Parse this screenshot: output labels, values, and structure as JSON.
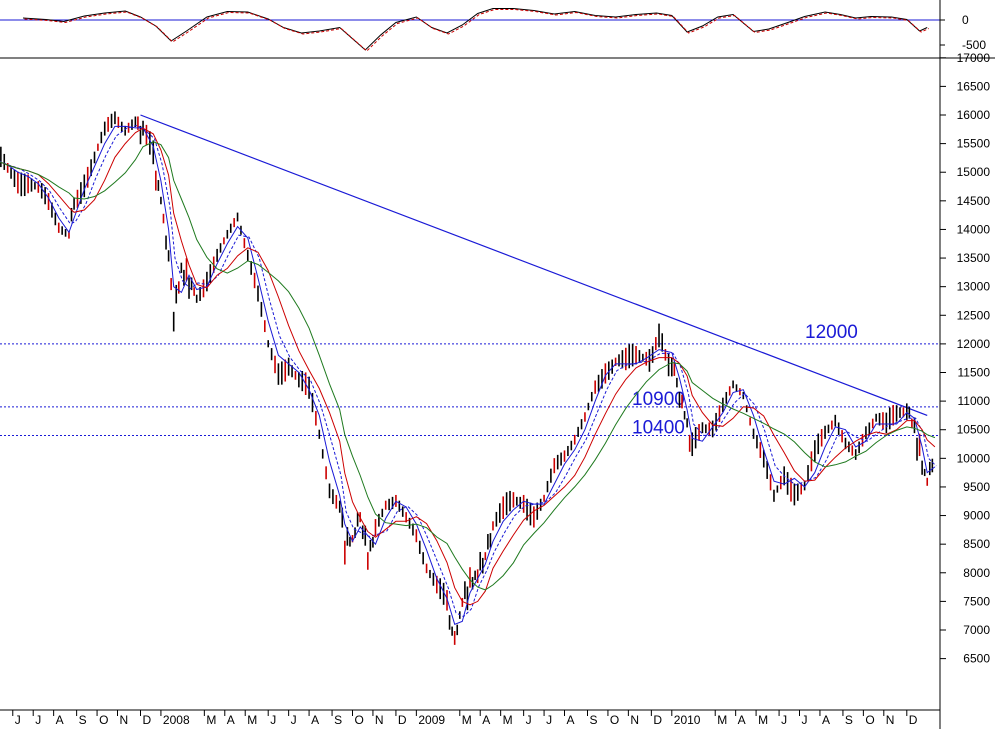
{
  "chart_data": [
    {
      "panel": "oscillator",
      "type": "line",
      "y_ticks": [
        0,
        -500
      ],
      "zero_line": true,
      "series": [
        {
          "style": "solid",
          "color": "#000000"
        },
        {
          "style": "dashed",
          "color": "#cc0000"
        }
      ],
      "values": [
        [
          2007.46,
          40
        ],
        [
          2007.55,
          10
        ],
        [
          2007.62,
          -30
        ],
        [
          2007.7,
          80
        ],
        [
          2007.78,
          140
        ],
        [
          2007.86,
          180
        ],
        [
          2007.92,
          60
        ],
        [
          2007.98,
          -120
        ],
        [
          2008.04,
          -420
        ],
        [
          2008.1,
          -220
        ],
        [
          2008.18,
          60
        ],
        [
          2008.26,
          170
        ],
        [
          2008.34,
          160
        ],
        [
          2008.42,
          20
        ],
        [
          2008.48,
          -150
        ],
        [
          2008.55,
          -260
        ],
        [
          2008.62,
          -220
        ],
        [
          2008.7,
          -150
        ],
        [
          2008.76,
          -420
        ],
        [
          2008.8,
          -600
        ],
        [
          2008.86,
          -300
        ],
        [
          2008.92,
          -50
        ],
        [
          2009.0,
          60
        ],
        [
          2009.06,
          -150
        ],
        [
          2009.12,
          -260
        ],
        [
          2009.18,
          -100
        ],
        [
          2009.24,
          130
        ],
        [
          2009.3,
          230
        ],
        [
          2009.38,
          230
        ],
        [
          2009.46,
          190
        ],
        [
          2009.54,
          120
        ],
        [
          2009.62,
          170
        ],
        [
          2009.7,
          90
        ],
        [
          2009.78,
          60
        ],
        [
          2009.86,
          110
        ],
        [
          2009.94,
          140
        ],
        [
          2010.0,
          90
        ],
        [
          2010.06,
          -240
        ],
        [
          2010.12,
          -120
        ],
        [
          2010.18,
          60
        ],
        [
          2010.24,
          110
        ],
        [
          2010.32,
          -230
        ],
        [
          2010.38,
          -180
        ],
        [
          2010.46,
          -40
        ],
        [
          2010.52,
          70
        ],
        [
          2010.6,
          160
        ],
        [
          2010.66,
          110
        ],
        [
          2010.72,
          40
        ],
        [
          2010.78,
          70
        ],
        [
          2010.86,
          60
        ],
        [
          2010.92,
          10
        ],
        [
          2010.97,
          -220
        ],
        [
          2011.0,
          -150
        ]
      ]
    },
    {
      "panel": "price",
      "type": "line",
      "y_ticks": [
        17000,
        16500,
        16000,
        15500,
        15000,
        14500,
        14000,
        13500,
        13000,
        12500,
        12000,
        11500,
        11000,
        10500,
        10000,
        9500,
        9000,
        8500,
        8000,
        7500,
        7000,
        6500
      ],
      "x_tick_labels": [
        "J",
        "J",
        "A",
        "S",
        "O",
        "N",
        "D",
        "2008",
        "M",
        "A",
        "M",
        "J",
        "J",
        "A",
        "S",
        "O",
        "N",
        "D",
        "2009",
        "M",
        "A",
        "M",
        "J",
        "J",
        "A",
        "S",
        "O",
        "N",
        "D",
        "2010",
        "M",
        "A",
        "M",
        "J",
        "J",
        "A",
        "S",
        "O",
        "N",
        "D"
      ],
      "x_tick_dates": [
        2007.42,
        2007.5,
        2007.58,
        2007.67,
        2007.75,
        2007.83,
        2007.92,
        2008.0,
        2008.17,
        2008.25,
        2008.33,
        2008.42,
        2008.5,
        2008.58,
        2008.67,
        2008.75,
        2008.83,
        2008.92,
        2009.0,
        2009.17,
        2009.25,
        2009.33,
        2009.42,
        2009.5,
        2009.58,
        2009.67,
        2009.75,
        2009.83,
        2009.92,
        2010.0,
        2010.17,
        2010.25,
        2010.33,
        2010.42,
        2010.5,
        2010.58,
        2010.67,
        2010.75,
        2010.83,
        2010.92
      ],
      "horizontal_levels": [
        {
          "value": 12000,
          "label": "12000"
        },
        {
          "value": 10900,
          "label": "10900"
        },
        {
          "value": 10400,
          "label": "10400"
        }
      ],
      "trendline": {
        "from": [
          2007.92,
          16000
        ],
        "to": [
          2011.0,
          10750
        ]
      },
      "close": [
        [
          2007.36,
          15200
        ],
        [
          2007.4,
          15050
        ],
        [
          2007.44,
          14950
        ],
        [
          2007.48,
          14900
        ],
        [
          2007.52,
          14700
        ],
        [
          2007.56,
          14400
        ],
        [
          2007.6,
          14000
        ],
        [
          2007.64,
          13900
        ],
        [
          2007.66,
          14500
        ],
        [
          2007.7,
          14900
        ],
        [
          2007.74,
          15300
        ],
        [
          2007.78,
          15700
        ],
        [
          2007.82,
          15900
        ],
        [
          2007.86,
          15700
        ],
        [
          2007.9,
          15850
        ],
        [
          2007.93,
          15700
        ],
        [
          2007.97,
          15200
        ],
        [
          2008.0,
          14500
        ],
        [
          2008.03,
          13500
        ],
        [
          2008.05,
          12500
        ],
        [
          2008.08,
          13300
        ],
        [
          2008.11,
          13100
        ],
        [
          2008.14,
          12800
        ],
        [
          2008.18,
          13200
        ],
        [
          2008.22,
          13600
        ],
        [
          2008.26,
          13900
        ],
        [
          2008.3,
          14200
        ],
        [
          2008.34,
          13500
        ],
        [
          2008.38,
          12800
        ],
        [
          2008.42,
          12000
        ],
        [
          2008.46,
          11600
        ],
        [
          2008.5,
          11700
        ],
        [
          2008.54,
          11300
        ],
        [
          2008.58,
          11100
        ],
        [
          2008.62,
          10400
        ],
        [
          2008.66,
          9500
        ],
        [
          2008.7,
          9200
        ],
        [
          2008.72,
          8500
        ],
        [
          2008.75,
          8600
        ],
        [
          2008.78,
          9000
        ],
        [
          2008.81,
          8300
        ],
        [
          2008.84,
          8700
        ],
        [
          2008.88,
          9200
        ],
        [
          2008.92,
          9300
        ],
        [
          2008.96,
          9000
        ],
        [
          2009.0,
          8700
        ],
        [
          2009.04,
          8100
        ],
        [
          2009.08,
          7700
        ],
        [
          2009.12,
          7400
        ],
        [
          2009.15,
          6800
        ],
        [
          2009.18,
          7500
        ],
        [
          2009.21,
          7800
        ],
        [
          2009.24,
          8000
        ],
        [
          2009.27,
          8300
        ],
        [
          2009.3,
          8800
        ],
        [
          2009.34,
          9000
        ],
        [
          2009.38,
          9200
        ],
        [
          2009.42,
          9300
        ],
        [
          2009.46,
          9100
        ],
        [
          2009.5,
          9300
        ],
        [
          2009.54,
          9800
        ],
        [
          2009.58,
          10000
        ],
        [
          2009.62,
          10300
        ],
        [
          2009.66,
          10700
        ],
        [
          2009.7,
          11300
        ],
        [
          2009.74,
          11600
        ],
        [
          2009.78,
          11700
        ],
        [
          2009.82,
          11600
        ],
        [
          2009.86,
          11700
        ],
        [
          2009.9,
          11800
        ],
        [
          2009.95,
          12000
        ],
        [
          2010.0,
          11700
        ],
        [
          2010.03,
          11100
        ],
        [
          2010.06,
          10600
        ],
        [
          2010.08,
          10100
        ],
        [
          2010.12,
          10500
        ],
        [
          2010.16,
          10600
        ],
        [
          2010.2,
          11000
        ],
        [
          2010.24,
          11300
        ],
        [
          2010.28,
          11100
        ],
        [
          2010.32,
          10400
        ],
        [
          2010.36,
          9900
        ],
        [
          2010.4,
          9300
        ],
        [
          2010.44,
          9800
        ],
        [
          2010.48,
          9500
        ],
        [
          2010.52,
          9500
        ],
        [
          2010.56,
          10000
        ],
        [
          2010.6,
          10400
        ],
        [
          2010.64,
          10700
        ],
        [
          2010.68,
          10300
        ],
        [
          2010.72,
          10100
        ],
        [
          2010.76,
          10500
        ],
        [
          2010.8,
          10700
        ],
        [
          2010.84,
          10500
        ],
        [
          2010.88,
          10700
        ],
        [
          2010.92,
          10900
        ],
        [
          2010.95,
          10500
        ],
        [
          2010.98,
          9900
        ],
        [
          2011.0,
          9600
        ],
        [
          2011.03,
          10100
        ]
      ]
    }
  ]
}
